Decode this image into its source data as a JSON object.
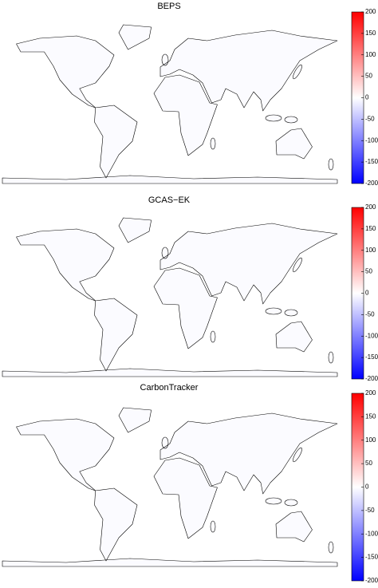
{
  "panels": [
    {
      "title": "BEPS",
      "colorbar": {
        "range": [
          -200,
          200
        ],
        "ticks": [
          200,
          150,
          100,
          50,
          0,
          -50,
          -100,
          -150,
          -200
        ]
      }
    },
    {
      "title": "GCAS−EK",
      "colorbar": {
        "range": [
          -200,
          200
        ],
        "ticks": [
          200,
          150,
          100,
          50,
          0,
          -50,
          -100,
          -150,
          -200
        ]
      }
    },
    {
      "title": "CarbonTracker",
      "colorbar": {
        "range": [
          -200,
          200
        ],
        "ticks": [
          200,
          150,
          100,
          50,
          0,
          -50,
          -100,
          -150,
          -200
        ]
      }
    }
  ]
}
